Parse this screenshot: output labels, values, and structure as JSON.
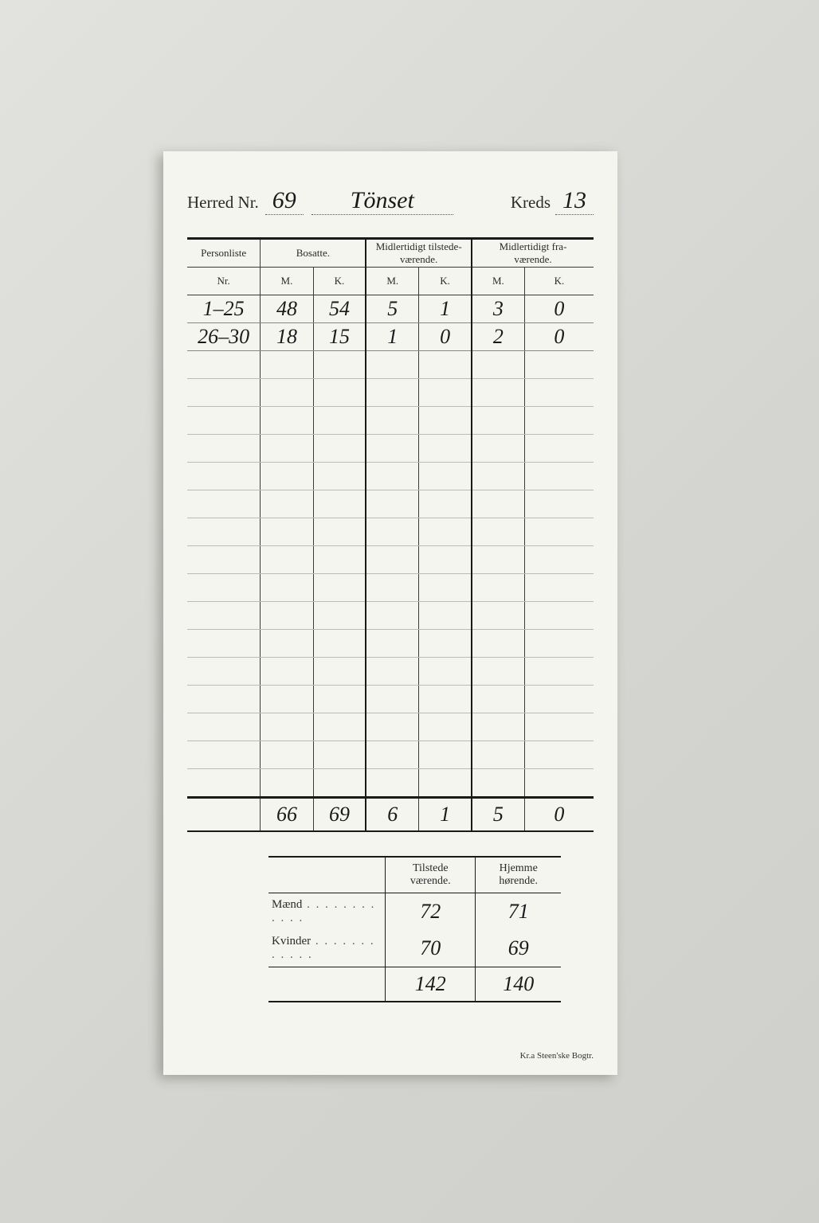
{
  "header": {
    "label_herred": "Herred Nr.",
    "herred_nr": "69",
    "herred_name": "Tönset",
    "label_kreds": "Kreds",
    "kreds_nr": "13"
  },
  "main_table": {
    "columns": {
      "personliste": "Personliste",
      "nr": "Nr.",
      "bosatte": "Bosatte.",
      "midl_tilstede": "Midlertidigt tilstede-\nværende.",
      "midl_fra": "Midlertidigt fra-\nværende.",
      "M": "M.",
      "K": "K."
    },
    "col_widths_pct": [
      18,
      13,
      13,
      13,
      13,
      13,
      17
    ],
    "rows": [
      {
        "nr": "1–25",
        "bos_m": "48",
        "bos_k": "54",
        "til_m": "5",
        "til_k": "1",
        "fra_m": "3",
        "fra_k": "0"
      },
      {
        "nr": "26–30",
        "bos_m": "18",
        "bos_k": "15",
        "til_m": "1",
        "til_k": "0",
        "fra_m": "2",
        "fra_k": "0"
      }
    ],
    "blank_row_count": 16,
    "totals": {
      "bos_m": "66",
      "bos_k": "69",
      "til_m": "6",
      "til_k": "1",
      "fra_m": "5",
      "fra_k": "0"
    }
  },
  "summary_table": {
    "col_tilstede": "Tilstede\nværende.",
    "col_hjemme": "Hjemme\nhørende.",
    "rows": [
      {
        "label": "Mænd",
        "tilstede": "72",
        "hjemme": "71"
      },
      {
        "label": "Kvinder",
        "tilstede": "70",
        "hjemme": "69"
      }
    ],
    "totals": {
      "tilstede": "142",
      "hjemme": "140"
    }
  },
  "imprint": "Kr.a   Steen'ske Bogtr.",
  "colors": {
    "page_bg": "#d8d8d6",
    "sheet_bg": "#f5f5f0",
    "ink": "#1a1a1a",
    "rule_light": "#888"
  }
}
